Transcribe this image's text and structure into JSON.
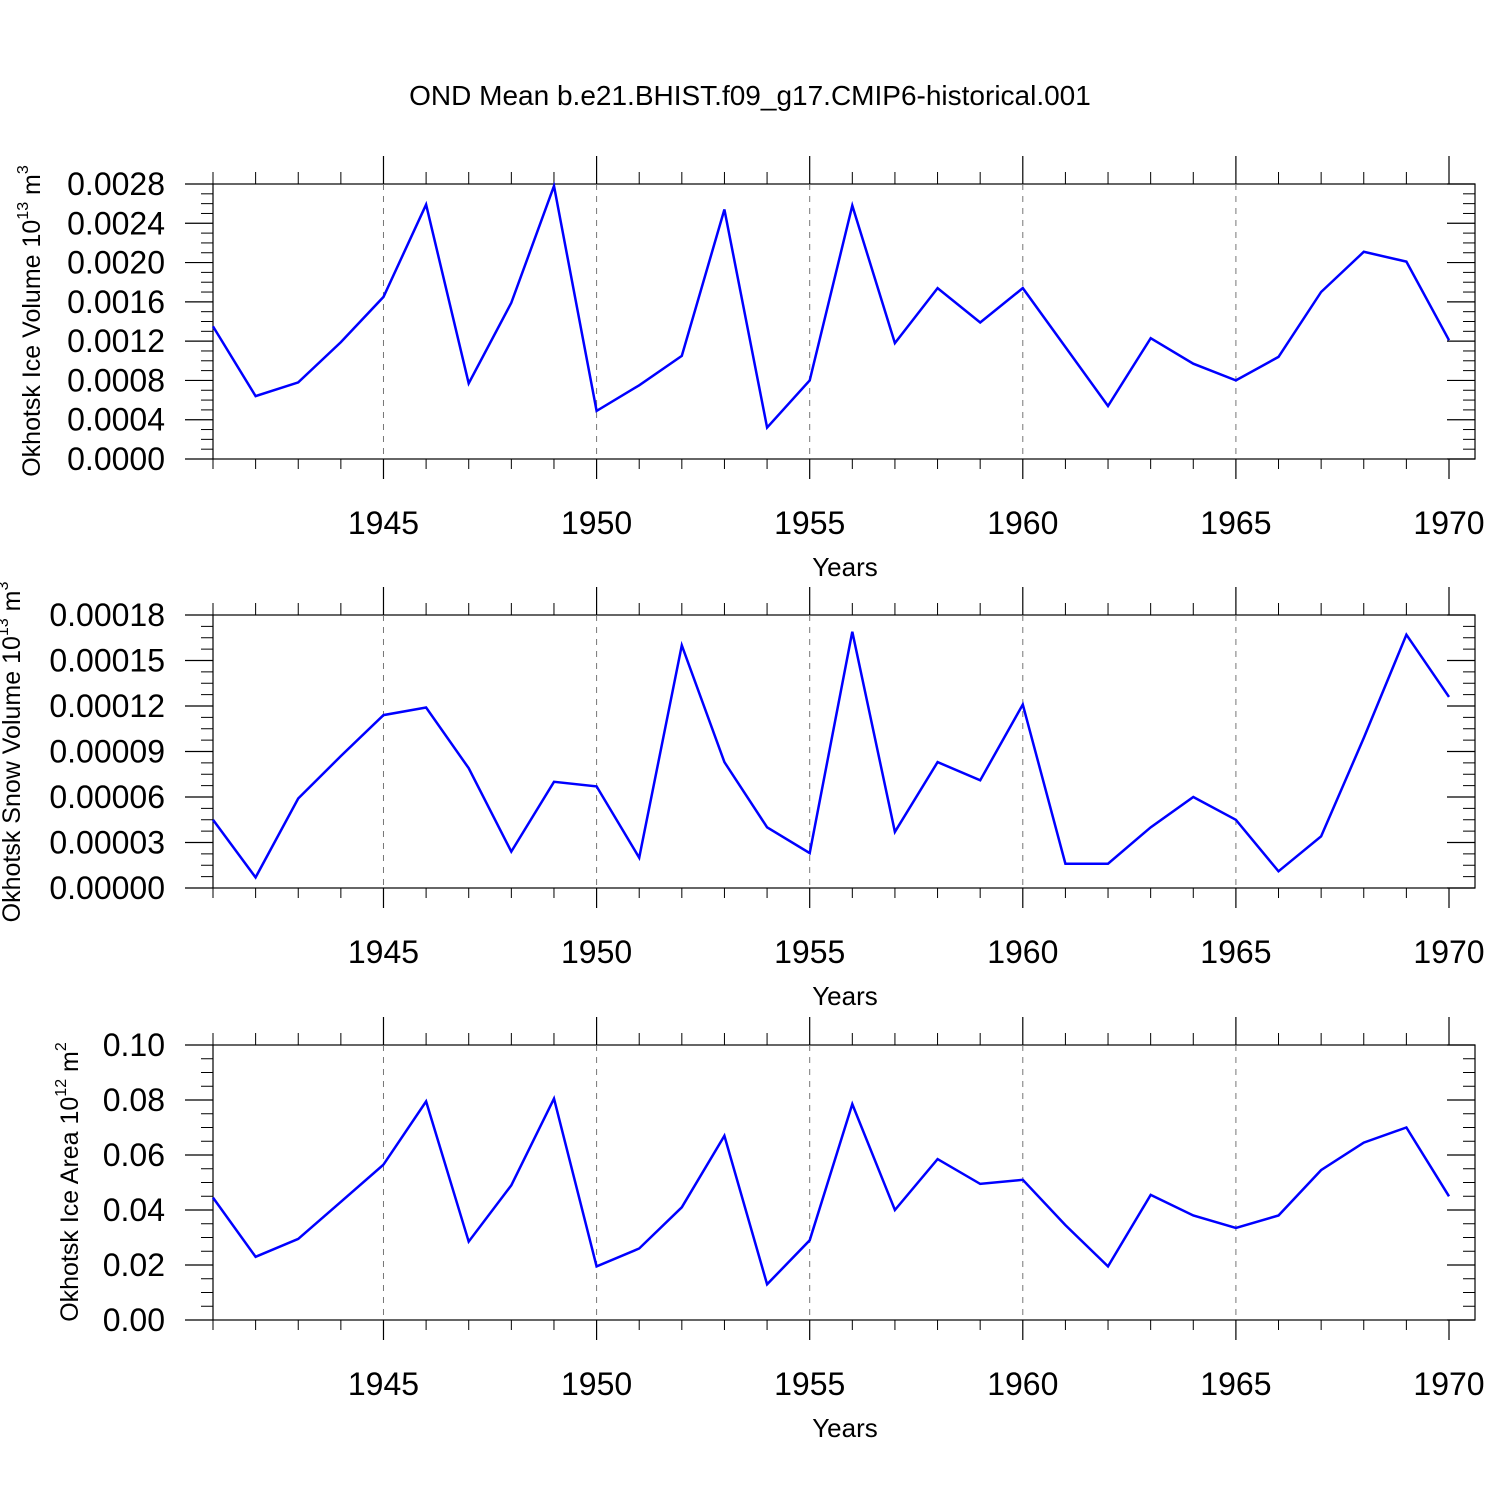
{
  "title": "OND Mean b.e21.BHIST.f09_g17.CMIP6-historical.001",
  "chart_data": [
    {
      "type": "line",
      "ylabel": {
        "base": "Okhotsk Ice Volume 10",
        "exp": "13",
        "unit": " m",
        "unit_exp": "3"
      },
      "xlabel": "Years",
      "xlim": [
        1941,
        1970
      ],
      "ylim": [
        0,
        0.0028
      ],
      "grid": "dashed vertical at major x ticks",
      "x_ticks": [
        "1945",
        "1950",
        "1955",
        "1960",
        "1965",
        "1970"
      ],
      "y_ticks": [
        "0.0000",
        "0.0004",
        "0.0008",
        "0.0012",
        "0.0016",
        "0.0020",
        "0.0024",
        "0.0028"
      ],
      "line_color": "#0000ff",
      "x": [
        1941,
        1942,
        1943,
        1944,
        1945,
        1946,
        1947,
        1948,
        1949,
        1950,
        1951,
        1952,
        1953,
        1954,
        1955,
        1956,
        1957,
        1958,
        1959,
        1960,
        1961,
        1962,
        1963,
        1964,
        1965,
        1966,
        1967,
        1968,
        1969,
        1970
      ],
      "values": [
        0.00135,
        0.00064,
        0.00078,
        0.00119,
        0.00165,
        0.00259,
        0.00077,
        0.00159,
        0.00278,
        0.00049,
        0.00075,
        0.00105,
        0.00254,
        0.00032,
        0.0008,
        0.00258,
        0.00118,
        0.00174,
        0.00139,
        0.00174,
        0.00114,
        0.00054,
        0.00123,
        0.00097,
        0.0008,
        0.00104,
        0.0017,
        0.00211,
        0.00201,
        0.00121
      ]
    },
    {
      "type": "line",
      "ylabel": {
        "base": "Okhotsk Snow Volume 10",
        "exp": "13",
        "unit": " m",
        "unit_exp": "3"
      },
      "xlabel": "Years",
      "xlim": [
        1941,
        1970
      ],
      "ylim": [
        0,
        0.00018
      ],
      "grid": "dashed vertical at major x ticks",
      "x_ticks": [
        "1945",
        "1950",
        "1955",
        "1960",
        "1965",
        "1970"
      ],
      "y_ticks": [
        "0.00000",
        "0.00003",
        "0.00006",
        "0.00009",
        "0.00012",
        "0.00015",
        "0.00018"
      ],
      "line_color": "#0000ff",
      "x": [
        1941,
        1942,
        1943,
        1944,
        1945,
        1946,
        1947,
        1948,
        1949,
        1950,
        1951,
        1952,
        1953,
        1954,
        1955,
        1956,
        1957,
        1958,
        1959,
        1960,
        1961,
        1962,
        1963,
        1964,
        1965,
        1966,
        1967,
        1968,
        1969,
        1970
      ],
      "values": [
        4.5e-05,
        7e-06,
        5.9e-05,
        8.7e-05,
        0.000114,
        0.000119,
        7.9e-05,
        2.4e-05,
        7e-05,
        6.7e-05,
        2e-05,
        0.00016,
        8.3e-05,
        4e-05,
        2.3e-05,
        0.000169,
        3.7e-05,
        8.3e-05,
        7.1e-05,
        0.000121,
        1.6e-05,
        1.6e-05,
        4e-05,
        6e-05,
        4.5e-05,
        1.1e-05,
        3.4e-05,
        9.9e-05,
        0.000167,
        0.000126
      ]
    },
    {
      "type": "line",
      "ylabel": {
        "base": "Okhotsk Ice Area 10",
        "exp": "12",
        "unit": " m",
        "unit_exp": "2"
      },
      "xlabel": "Years",
      "xlim": [
        1941,
        1970
      ],
      "ylim": [
        0,
        0.1
      ],
      "grid": "dashed vertical at major x ticks",
      "x_ticks": [
        "1945",
        "1950",
        "1955",
        "1960",
        "1965",
        "1970"
      ],
      "y_ticks": [
        "0.00",
        "0.02",
        "0.04",
        "0.06",
        "0.08",
        "0.10"
      ],
      "line_color": "#0000ff",
      "x": [
        1941,
        1942,
        1943,
        1944,
        1945,
        1946,
        1947,
        1948,
        1949,
        1950,
        1951,
        1952,
        1953,
        1954,
        1955,
        1956,
        1957,
        1958,
        1959,
        1960,
        1961,
        1962,
        1963,
        1964,
        1965,
        1966,
        1967,
        1968,
        1969,
        1970
      ],
      "values": [
        0.0445,
        0.023,
        0.0295,
        0.043,
        0.0565,
        0.0795,
        0.0285,
        0.049,
        0.0805,
        0.0195,
        0.026,
        0.041,
        0.067,
        0.013,
        0.029,
        0.0785,
        0.04,
        0.0585,
        0.0495,
        0.051,
        0.0345,
        0.0195,
        0.0455,
        0.038,
        0.0335,
        0.038,
        0.0545,
        0.0645,
        0.07,
        0.045
      ]
    }
  ]
}
